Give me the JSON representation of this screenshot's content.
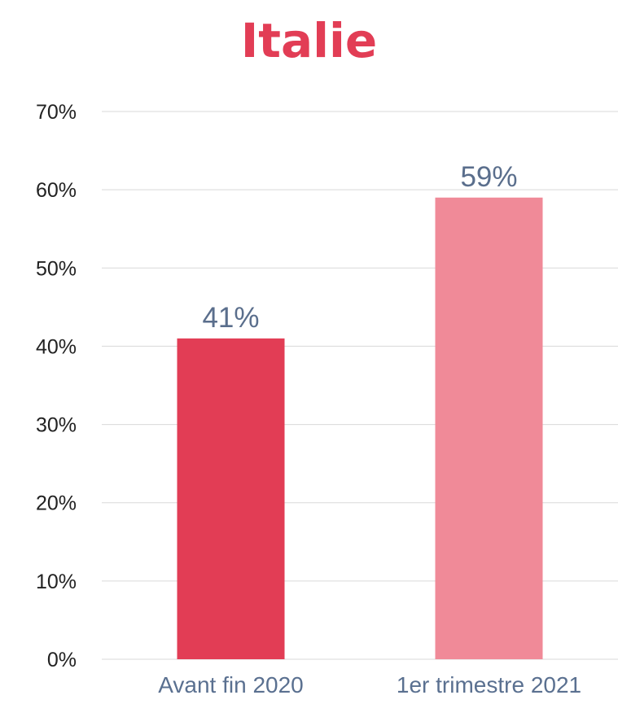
{
  "chart_data": {
    "type": "bar",
    "title": "Italie",
    "categories": [
      "Avant fin 2020",
      "1er trimestre 2021"
    ],
    "values": [
      41,
      59
    ],
    "data_labels": [
      "41%",
      "59%"
    ],
    "colors": [
      "#e23d55",
      "#f08a98"
    ],
    "ylim": [
      0,
      70
    ],
    "y_ticks": [
      "0%",
      "10%",
      "20%",
      "30%",
      "40%",
      "50%",
      "60%",
      "70%"
    ],
    "xlabel": "",
    "ylabel": "",
    "grid": true,
    "legend": "none"
  },
  "colors": {
    "title": "#e23d55",
    "data_label": "#5a6e8c",
    "category_label": "#5a7090",
    "tick_label": "#222222",
    "gridline": "#d9d9d9"
  }
}
